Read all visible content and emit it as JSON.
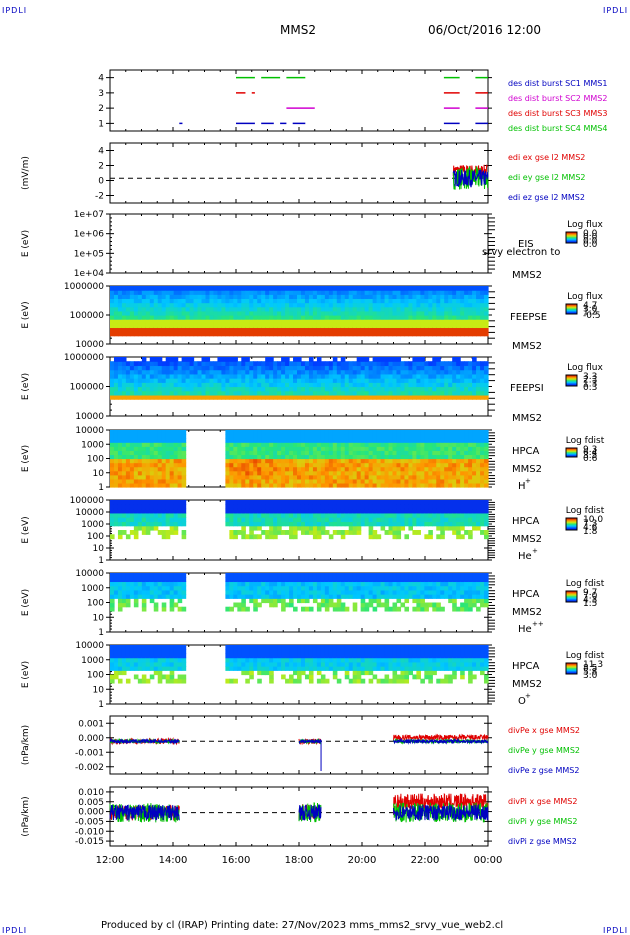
{
  "header": {
    "brand": "IPDLI",
    "spacecraft": "MMS2",
    "datetime": "06/Oct/2016 12:00"
  },
  "footer": {
    "text": "Produced by cl (IRAP)   Printing date: 27/Nov/2023   mms_mms2_srvy_vue_web2.cl"
  },
  "colors": {
    "red": "#e00000",
    "green": "#00c000",
    "blue": "#0000c0",
    "magenta": "#d000d0",
    "black": "#000000"
  },
  "chart_data": [
    {
      "type": "line",
      "panel": "burst-availability",
      "yticks": [
        "1",
        "2",
        "3",
        "4"
      ],
      "ylim": [
        0.5,
        4.5
      ],
      "series": [
        {
          "name": "des dist burst SC1 MMS1",
          "color": "#0000c0",
          "y": 1,
          "segments": [
            [
              14.2,
              14.3
            ],
            [
              16.0,
              16.6
            ],
            [
              16.8,
              17.2
            ],
            [
              17.4,
              17.6
            ],
            [
              17.8,
              18.2
            ],
            [
              22.6,
              23.1
            ],
            [
              23.6,
              24.0
            ]
          ]
        },
        {
          "name": "des dist burst SC2 MMS2",
          "color": "#d000d0",
          "y": 2,
          "segments": [
            [
              17.6,
              18.5
            ],
            [
              22.6,
              23.1
            ],
            [
              23.6,
              24.0
            ]
          ]
        },
        {
          "name": "des dist burst SC3 MMS3",
          "color": "#e00000",
          "y": 3,
          "segments": [
            [
              16.0,
              16.3
            ],
            [
              16.5,
              16.6
            ],
            [
              22.6,
              23.1
            ],
            [
              23.6,
              24.0
            ]
          ]
        },
        {
          "name": "des dist burst SC4 MMS4",
          "color": "#00c000",
          "y": 4,
          "segments": [
            [
              16.0,
              16.6
            ],
            [
              16.8,
              17.4
            ],
            [
              17.6,
              18.2
            ],
            [
              22.6,
              23.1
            ],
            [
              23.6,
              24.0
            ]
          ]
        }
      ]
    },
    {
      "type": "line",
      "panel": "edi-electric-field",
      "ylabel": "(mV/m)",
      "yticks": [
        "-2",
        "0",
        "2",
        "4"
      ],
      "ylim": [
        -3.5,
        5
      ],
      "series": [
        {
          "name": "edi ex gse l2 MMS2",
          "color": "#e00000"
        },
        {
          "name": "edi ey gse l2 MMS2",
          "color": "#00c000"
        },
        {
          "name": "edi ez gse l2 MMS2",
          "color": "#0000c0"
        }
      ],
      "active_interval_hours": [
        22.9,
        24.0
      ]
    },
    {
      "type": "heatmap",
      "panel": "eis",
      "ylabel": "E (eV)",
      "yticks": [
        "1e+04",
        "1e+05",
        "1e+06",
        "1e+07"
      ],
      "instrument": [
        "EIS",
        "srvy electron to",
        "MMS2"
      ],
      "colorbar": {
        "title": "Log flux",
        "ticks": [
          "0.0",
          "0.0",
          "0.0",
          "0.0"
        ]
      }
    },
    {
      "type": "heatmap",
      "panel": "feeps-electron",
      "ylabel": "E (eV)",
      "yticks": [
        "10000",
        "100000",
        "1000000"
      ],
      "instrument": [
        "FEEPSE",
        "MMS2"
      ],
      "colorbar": {
        "title": "Log flux",
        "ticks": [
          "4.7",
          "3.0",
          "1.2",
          "-0.5"
        ]
      }
    },
    {
      "type": "heatmap",
      "panel": "feeps-ion",
      "ylabel": "E (eV)",
      "yticks": [
        "10000",
        "100000",
        "1000000"
      ],
      "instrument": [
        "FEEPSI",
        "MMS2"
      ],
      "colorbar": {
        "title": "Log flux",
        "ticks": [
          "3.3",
          "2.3",
          "1.3",
          "0.3"
        ]
      }
    },
    {
      "type": "heatmap",
      "panel": "hpca-h",
      "ylabel": "E (eV)",
      "yticks": [
        "1",
        "10",
        "100",
        "1000",
        "10000"
      ],
      "instrument": [
        "HPCA",
        "MMS2",
        "H",
        "+"
      ],
      "colorbar": {
        "title": "Log fdist",
        "ticks": [
          "9.3",
          "6.4",
          "3.5",
          "0.6"
        ]
      },
      "data_gap_hours": [
        14.3,
        15.6
      ]
    },
    {
      "type": "heatmap",
      "panel": "hpca-he",
      "ylabel": "E (eV)",
      "yticks": [
        "1",
        "10",
        "100",
        "1000",
        "10000",
        "100000"
      ],
      "instrument": [
        "HPCA",
        "MMS2",
        "He",
        "+"
      ],
      "colorbar": {
        "title": "Log fdist",
        "ticks": [
          "10.0",
          "7.3",
          "4.6",
          "1.8"
        ]
      },
      "data_gap_hours": [
        14.3,
        15.6
      ]
    },
    {
      "type": "heatmap",
      "panel": "hpca-he2",
      "ylabel": "E (eV)",
      "yticks": [
        "1",
        "10",
        "100",
        "1000",
        "10000"
      ],
      "instrument": [
        "HPCA",
        "MMS2",
        "He",
        "++"
      ],
      "colorbar": {
        "title": "Log fdist",
        "ticks": [
          "9.7",
          "7.0",
          "4.3",
          "1.5"
        ]
      },
      "data_gap_hours": [
        14.3,
        15.6
      ]
    },
    {
      "type": "heatmap",
      "panel": "hpca-o",
      "ylabel": "E (eV)",
      "yticks": [
        "1",
        "10",
        "100",
        "1000",
        "10000"
      ],
      "instrument": [
        "HPCA",
        "MMS2",
        "O",
        "+"
      ],
      "colorbar": {
        "title": "Log fdist",
        "ticks": [
          "11.3",
          "8.5",
          "5.8",
          "3.0"
        ]
      },
      "data_gap_hours": [
        14.3,
        15.6
      ]
    },
    {
      "type": "line",
      "panel": "div-pe",
      "ylabel": "(nPa/km)",
      "yticks": [
        "-0.002",
        "-0.001",
        "0.000",
        "0.001"
      ],
      "ylim": [
        -0.0022,
        0.0017
      ],
      "series": [
        {
          "name": "divPe x gse MMS2",
          "color": "#e00000"
        },
        {
          "name": "divPe y gse MMS2",
          "color": "#00c000"
        },
        {
          "name": "divPe z gse MMS2",
          "color": "#0000c0"
        }
      ],
      "data_intervals_hours": [
        [
          12.0,
          14.2
        ],
        [
          18.0,
          18.7
        ],
        [
          21.0,
          24.0
        ]
      ]
    },
    {
      "type": "line",
      "panel": "div-pi",
      "ylabel": "(nPa/km)",
      "yticks": [
        "-0.015",
        "-0.010",
        "-0.005",
        "0.000",
        "0.005",
        "0.010"
      ],
      "ylim": [
        -0.017,
        0.013
      ],
      "series": [
        {
          "name": "divPi x gse MMS2",
          "color": "#e00000"
        },
        {
          "name": "divPi y gse MMS2",
          "color": "#00c000"
        },
        {
          "name": "divPi z gse MMS2",
          "color": "#0000c0"
        }
      ],
      "data_intervals_hours": [
        [
          12.0,
          14.2
        ],
        [
          18.0,
          18.7
        ],
        [
          21.0,
          24.0
        ]
      ]
    }
  ],
  "time_axis": {
    "range_hours": [
      12,
      24
    ],
    "ticks": [
      "12:00",
      "14:00",
      "16:00",
      "18:00",
      "20:00",
      "22:00",
      "00:00"
    ]
  }
}
